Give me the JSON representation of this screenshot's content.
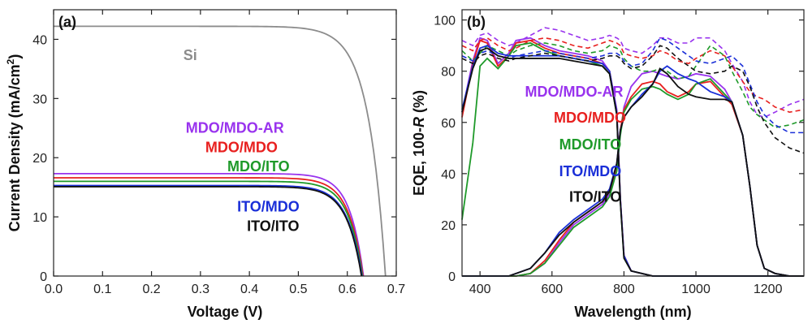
{
  "chart_data": [
    {
      "type": "line",
      "panel_label": "(a)",
      "xlabel": "Voltage (V)",
      "ylabel_main": "Current Density (mA/cm",
      "ylabel_sup": "2",
      "ylabel_close": ")",
      "xlim": [
        0.0,
        0.7
      ],
      "ylim": [
        0,
        45
      ],
      "xticks": [
        0.0,
        0.1,
        0.2,
        0.3,
        0.4,
        0.5,
        0.6,
        0.7
      ],
      "xtick_labels": [
        "0.0",
        "0.1",
        "0.2",
        "0.3",
        "0.4",
        "0.5",
        "0.6",
        "0.7"
      ],
      "yticks": [
        0,
        10,
        20,
        30,
        40
      ],
      "ytick_labels": [
        "0",
        "10",
        "20",
        "30",
        "40"
      ],
      "series": [
        {
          "name": "Si",
          "color": "#8c8c8c",
          "Jsc": 42.2,
          "Voc": 0.678,
          "knee": 0.035
        },
        {
          "name": "MDO/MDO-AR",
          "color": "#9933ee",
          "Jsc": 17.3,
          "Voc": 0.633,
          "knee": 0.028
        },
        {
          "name": "MDO/MDO",
          "color": "#e8201f",
          "Jsc": 16.6,
          "Voc": 0.632,
          "knee": 0.029
        },
        {
          "name": "MDO/ITO",
          "color": "#1f9a2a",
          "Jsc": 16.0,
          "Voc": 0.631,
          "knee": 0.029
        },
        {
          "name": "ITO/MDO",
          "color": "#1a2fd8",
          "Jsc": 15.3,
          "Voc": 0.63,
          "knee": 0.03
        },
        {
          "name": "ITO/ITO",
          "color": "#111111",
          "Jsc": 15.1,
          "Voc": 0.629,
          "knee": 0.03
        }
      ],
      "annotations": [
        {
          "text": "Si",
          "color": "#8c8c8c",
          "x": 0.265,
          "y": 36.5
        },
        {
          "text": "MDO/MDO-AR",
          "color": "#9933ee",
          "x": 0.27,
          "y": 24.2
        },
        {
          "text": "MDO/MDO",
          "color": "#e8201f",
          "x": 0.31,
          "y": 20.9
        },
        {
          "text": "MDO/ITO",
          "color": "#1f9a2a",
          "x": 0.355,
          "y": 17.7
        },
        {
          "text": "ITO/MDO",
          "color": "#1a2fd8",
          "x": 0.375,
          "y": 10.9
        },
        {
          "text": "ITO/ITO",
          "color": "#111111",
          "x": 0.395,
          "y": 7.6
        }
      ]
    },
    {
      "type": "line",
      "panel_label": "(b)",
      "xlabel": "Wavelength (nm)",
      "ylabel_main": "EQE, 100-",
      "ylabel_italic": "R",
      "ylabel_close": " (%)",
      "xlim": [
        350,
        1300
      ],
      "ylim": [
        0,
        104
      ],
      "xticks": [
        400,
        600,
        800,
        1000,
        1200
      ],
      "xtick_labels": [
        "400",
        "600",
        "800",
        "1000",
        "1200"
      ],
      "yticks": [
        0,
        20,
        40,
        60,
        80,
        100
      ],
      "ytick_labels": [
        "0",
        "20",
        "40",
        "60",
        "80",
        "100"
      ],
      "wavelengths": [
        350,
        380,
        400,
        420,
        450,
        480,
        500,
        540,
        580,
        620,
        660,
        700,
        740,
        760,
        780,
        790,
        800,
        820,
        850,
        880,
        900,
        920,
        950,
        980,
        1000,
        1040,
        1080,
        1100,
        1130,
        1150,
        1170,
        1190,
        1220,
        1260,
        1300
      ],
      "series": [
        {
          "name": "MDO/MDO-AR",
          "color": "#9933ee",
          "top_eqe": [
            64,
            84,
            93,
            92,
            83,
            87,
            92,
            93,
            90,
            88,
            87,
            86,
            84,
            80,
            65,
            30,
            8,
            2,
            1,
            0,
            0,
            0,
            0,
            0,
            0,
            0,
            0,
            0,
            0,
            0,
            0,
            0,
            0,
            0,
            0
          ],
          "bottom_eqe": [
            0,
            0,
            0,
            0,
            0,
            0,
            0,
            1,
            5,
            13,
            20,
            24,
            28,
            32,
            42,
            56,
            66,
            74,
            79,
            80,
            79,
            78,
            77,
            78,
            79,
            78,
            73,
            68,
            55,
            35,
            12,
            3,
            1,
            0,
            0
          ],
          "reflection": [
            92,
            90,
            94,
            95,
            92,
            90,
            91,
            94,
            97,
            96,
            94,
            92,
            93,
            94,
            93,
            92,
            89,
            88,
            87,
            90,
            93,
            93,
            91,
            91,
            93,
            93,
            88,
            83,
            76,
            68,
            63,
            62,
            64,
            67,
            69
          ]
        },
        {
          "name": "MDO/MDO",
          "color": "#e8201f",
          "top_eqe": [
            62,
            83,
            92,
            91,
            82,
            86,
            91,
            92,
            89,
            87,
            86,
            85,
            83,
            80,
            64,
            30,
            8,
            2,
            1,
            0,
            0,
            0,
            0,
            0,
            0,
            0,
            0,
            0,
            0,
            0,
            0,
            0,
            0,
            0,
            0
          ],
          "bottom_eqe": [
            0,
            0,
            0,
            0,
            0,
            0,
            0,
            1,
            6,
            14,
            21,
            25,
            29,
            33,
            43,
            57,
            65,
            70,
            75,
            76,
            75,
            72,
            70,
            72,
            75,
            76,
            70,
            67,
            55,
            35,
            12,
            3,
            1,
            0,
            0
          ],
          "reflection": [
            90,
            88,
            92,
            93,
            90,
            88,
            89,
            92,
            93,
            92,
            90,
            89,
            91,
            92,
            91,
            90,
            87,
            86,
            85,
            86,
            88,
            87,
            84,
            83,
            85,
            88,
            86,
            82,
            76,
            72,
            70,
            69,
            66,
            64,
            65
          ]
        },
        {
          "name": "MDO/ITO",
          "color": "#1f9a2a",
          "top_eqe": [
            22,
            52,
            82,
            85,
            81,
            86,
            90,
            91,
            88,
            86,
            85,
            84,
            82,
            79,
            63,
            29,
            7,
            2,
            1,
            0,
            0,
            0,
            0,
            0,
            0,
            0,
            0,
            0,
            0,
            0,
            0,
            0,
            0,
            0,
            0
          ],
          "bottom_eqe": [
            0,
            0,
            0,
            0,
            0,
            0,
            0,
            1,
            5,
            12,
            19,
            23,
            27,
            31,
            41,
            55,
            64,
            69,
            73,
            74,
            73,
            71,
            69,
            71,
            75,
            77,
            71,
            68,
            55,
            35,
            12,
            3,
            1,
            0,
            0
          ],
          "reflection": [
            88,
            84,
            87,
            90,
            88,
            86,
            88,
            90,
            91,
            90,
            88,
            87,
            88,
            90,
            89,
            88,
            85,
            82,
            80,
            80,
            81,
            80,
            77,
            78,
            82,
            90,
            86,
            80,
            72,
            66,
            63,
            61,
            58,
            59,
            61
          ]
        },
        {
          "name": "ITO/MDO",
          "color": "#1a2fd8",
          "top_eqe": [
            65,
            82,
            89,
            90,
            87,
            86,
            86,
            86,
            86,
            86,
            85,
            84,
            83,
            80,
            64,
            30,
            8,
            2,
            1,
            0,
            0,
            0,
            0,
            0,
            0,
            0,
            0,
            0,
            0,
            0,
            0,
            0,
            0,
            0,
            0
          ],
          "bottom_eqe": [
            0,
            0,
            0,
            0,
            0,
            0,
            1,
            3,
            9,
            17,
            22,
            26,
            30,
            34,
            44,
            57,
            62,
            66,
            71,
            75,
            80,
            82,
            79,
            77,
            76,
            72,
            70,
            68,
            55,
            35,
            12,
            3,
            1,
            0,
            0
          ],
          "reflection": [
            86,
            84,
            87,
            88,
            86,
            85,
            86,
            87,
            88,
            87,
            86,
            85,
            86,
            87,
            87,
            86,
            84,
            82,
            83,
            88,
            93,
            92,
            89,
            86,
            84,
            83,
            85,
            86,
            82,
            75,
            68,
            63,
            59,
            56,
            56
          ]
        },
        {
          "name": "ITO/ITO",
          "color": "#111111",
          "top_eqe": [
            64,
            81,
            88,
            89,
            86,
            85,
            85,
            85,
            85,
            85,
            84,
            83,
            82,
            79,
            63,
            29,
            7,
            2,
            1,
            0,
            0,
            0,
            0,
            0,
            0,
            0,
            0,
            0,
            0,
            0,
            0,
            0,
            0,
            0,
            0
          ],
          "bottom_eqe": [
            0,
            0,
            0,
            0,
            0,
            0,
            1,
            3,
            9,
            16,
            21,
            25,
            29,
            33,
            44,
            57,
            62,
            66,
            70,
            75,
            81,
            79,
            74,
            71,
            70,
            69,
            69,
            68,
            55,
            35,
            12,
            3,
            1,
            0,
            0
          ],
          "reflection": [
            85,
            83,
            86,
            87,
            85,
            84,
            85,
            86,
            87,
            86,
            85,
            84,
            85,
            86,
            86,
            85,
            83,
            81,
            82,
            86,
            90,
            89,
            85,
            82,
            80,
            79,
            80,
            82,
            80,
            74,
            66,
            60,
            54,
            50,
            48
          ]
        }
      ],
      "annotations": [
        {
          "text": "MDO/MDO-AR",
          "color": "#9933ee",
          "x": 525,
          "y": 70
        },
        {
          "text": "MDO/MDO",
          "color": "#e8201f",
          "x": 605,
          "y": 60
        },
        {
          "text": "MDO/ITO",
          "color": "#1f9a2a",
          "x": 620,
          "y": 49.5
        },
        {
          "text": "ITO/MDO",
          "color": "#1a2fd8",
          "x": 620,
          "y": 39
        },
        {
          "text": "ITO/ITO",
          "color": "#111111",
          "x": 648,
          "y": 29
        }
      ]
    }
  ]
}
